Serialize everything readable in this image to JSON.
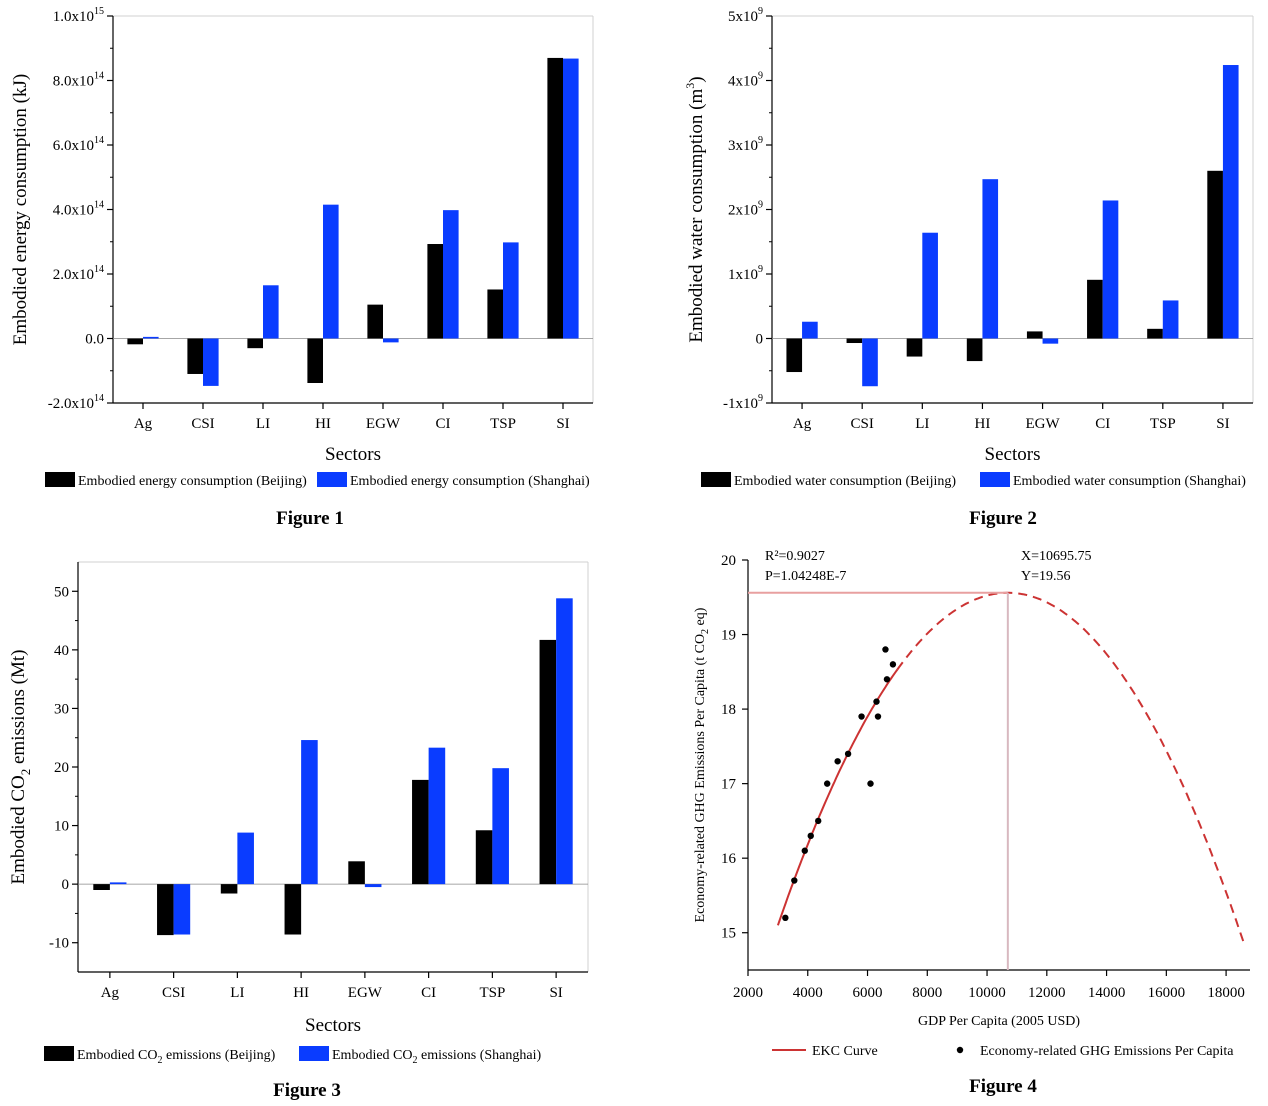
{
  "captions": [
    "Figure 1",
    "Figure 2",
    "Figure 3",
    "Figure 4"
  ],
  "chart_data": [
    {
      "type": "bar",
      "ylabel": "Embodied energy consumption (kJ)",
      "xlabel": "Sectors",
      "categories": [
        "Ag",
        "CSI",
        "LI",
        "HI",
        "EGW",
        "CI",
        "TSP",
        "SI"
      ],
      "ylim": [
        -200000000000000.0,
        1000000000000000.0
      ],
      "yticks": [
        -200000000000000.0,
        0,
        200000000000000.0,
        400000000000000.0,
        600000000000000.0,
        800000000000000.0,
        1000000000000000.0
      ],
      "ytick_labels": [
        {
          "base": "-2.0x10",
          "exp": "14"
        },
        {
          "base": "0.0",
          "exp": ""
        },
        {
          "base": "2.0x10",
          "exp": "14"
        },
        {
          "base": "4.0x10",
          "exp": "14"
        },
        {
          "base": "6.0x10",
          "exp": "14"
        },
        {
          "base": "8.0x10",
          "exp": "14"
        },
        {
          "base": "1.0x10",
          "exp": "15"
        }
      ],
      "legend": {
        "placement": "bottom",
        "entries": [
          {
            "pre": "Embodied energy consumption (Beijing)",
            "sub": "",
            "post": ""
          },
          {
            "pre": "Embodied energy consumption (Shanghai)",
            "sub": "",
            "post": ""
          }
        ]
      },
      "series": [
        {
          "color": "#000000",
          "values": [
            -18000000000000.0,
            -110000000000000.0,
            -30000000000000.0,
            -138000000000000.0,
            105000000000000.0,
            293000000000000.0,
            152000000000000.0,
            870000000000000.0
          ]
        },
        {
          "color": "#0a3cff",
          "values": [
            5000000000000.0,
            -147000000000000.0,
            165000000000000.0,
            415000000000000.0,
            -12000000000000.0,
            398000000000000.0,
            298000000000000.0,
            868000000000000.0
          ]
        }
      ]
    },
    {
      "type": "bar",
      "ylabel": "Embodied water consumption (m3)",
      "xlabel": "Sectors",
      "categories": [
        "Ag",
        "CSI",
        "LI",
        "HI",
        "EGW",
        "CI",
        "TSP",
        "SI"
      ],
      "ylim": [
        -1000000000.0,
        5000000000.0
      ],
      "yticks": [
        -1000000000.0,
        0,
        1000000000.0,
        2000000000.0,
        3000000000.0,
        4000000000.0,
        5000000000.0
      ],
      "ytick_labels": [
        {
          "base": "-1x10",
          "exp": "9"
        },
        {
          "base": "0",
          "exp": ""
        },
        {
          "base": "1x10",
          "exp": "9"
        },
        {
          "base": "2x10",
          "exp": "9"
        },
        {
          "base": "3x10",
          "exp": "9"
        },
        {
          "base": "4x10",
          "exp": "9"
        },
        {
          "base": "5x10",
          "exp": "9"
        }
      ],
      "legend": {
        "placement": "bottom",
        "entries": [
          {
            "pre": "Embodied water consumption (Beijing)",
            "sub": "",
            "post": ""
          },
          {
            "pre": "Embodied water consumption (Shanghai)",
            "sub": "",
            "post": ""
          }
        ]
      },
      "series": [
        {
          "color": "#000000",
          "values": [
            -520000000.0,
            -70000000.0,
            -280000000.0,
            -350000000.0,
            110000000.0,
            910000000.0,
            150000000.0,
            2600000000.0
          ]
        },
        {
          "color": "#0a3cff",
          "values": [
            260000000.0,
            -740000000.0,
            1640000000.0,
            2470000000.0,
            -80000000.0,
            2140000000.0,
            590000000.0,
            4240000000.0
          ]
        }
      ]
    },
    {
      "type": "bar",
      "ylabel": "Embodied CO2 emissions (Mt)",
      "xlabel": "Sectors",
      "categories": [
        "Ag",
        "CSI",
        "LI",
        "HI",
        "EGW",
        "CI",
        "TSP",
        "SI"
      ],
      "ylim": [
        -15,
        55
      ],
      "yticks": [
        -10,
        0,
        10,
        20,
        30,
        40,
        50
      ],
      "ytick_labels": [
        {
          "base": "-10",
          "exp": ""
        },
        {
          "base": "0",
          "exp": ""
        },
        {
          "base": "10",
          "exp": ""
        },
        {
          "base": "20",
          "exp": ""
        },
        {
          "base": "30",
          "exp": ""
        },
        {
          "base": "40",
          "exp": ""
        },
        {
          "base": "50",
          "exp": ""
        }
      ],
      "legend": {
        "placement": "bottom",
        "entries": [
          {
            "pre": "Embodied CO",
            "sub": "2",
            "post": " emissions (Beijing)"
          },
          {
            "pre": "Embodied CO",
            "sub": "2",
            "post": " emissions (Shanghai)"
          }
        ]
      },
      "series": [
        {
          "color": "#000000",
          "values": [
            -1.0,
            -8.7,
            -1.6,
            -8.6,
            3.9,
            17.8,
            9.2,
            41.7
          ]
        },
        {
          "color": "#0a3cff",
          "values": [
            0.3,
            -8.6,
            8.8,
            24.6,
            -0.5,
            23.3,
            19.8,
            48.8
          ]
        }
      ]
    },
    {
      "type": "scatter",
      "ylabel": "Economy-related GHG Emissions Per Capita (t CO2 eq)",
      "xlabel": "GDP Per Capita (2005 USD)",
      "xlim": [
        2000,
        18800
      ],
      "ylim": [
        14.5,
        20
      ],
      "xticks": [
        2000,
        4000,
        6000,
        8000,
        10000,
        12000,
        14000,
        16000,
        18000
      ],
      "yticks": [
        15,
        16,
        17,
        18,
        19,
        20
      ],
      "annotations": {
        "r2": "R²=0.9027",
        "p": "P=1.04248E-7",
        "x": "X=10695.75",
        "y": "Y=19.56"
      },
      "peak": {
        "x": 10695.75,
        "y": 19.56
      },
      "curve": {
        "x_start": 3000,
        "x_end": 18600,
        "solid_until": 7000,
        "color": "#cc3333"
      },
      "points": [
        [
          3250,
          15.2
        ],
        [
          3550,
          15.7
        ],
        [
          3900,
          16.1
        ],
        [
          4100,
          16.3
        ],
        [
          4350,
          16.5
        ],
        [
          4650,
          17.0
        ],
        [
          5000,
          17.3
        ],
        [
          5350,
          17.4
        ],
        [
          5800,
          17.9
        ],
        [
          6100,
          17.0
        ],
        [
          6300,
          18.1
        ],
        [
          6350,
          17.9
        ],
        [
          6650,
          18.4
        ],
        [
          6600,
          18.8
        ],
        [
          6850,
          18.6
        ]
      ],
      "legend": {
        "placement": "bottom",
        "curve_label": "EKC Curve",
        "points_label": "Economy-related GHG Emissions Per Capita"
      }
    }
  ]
}
